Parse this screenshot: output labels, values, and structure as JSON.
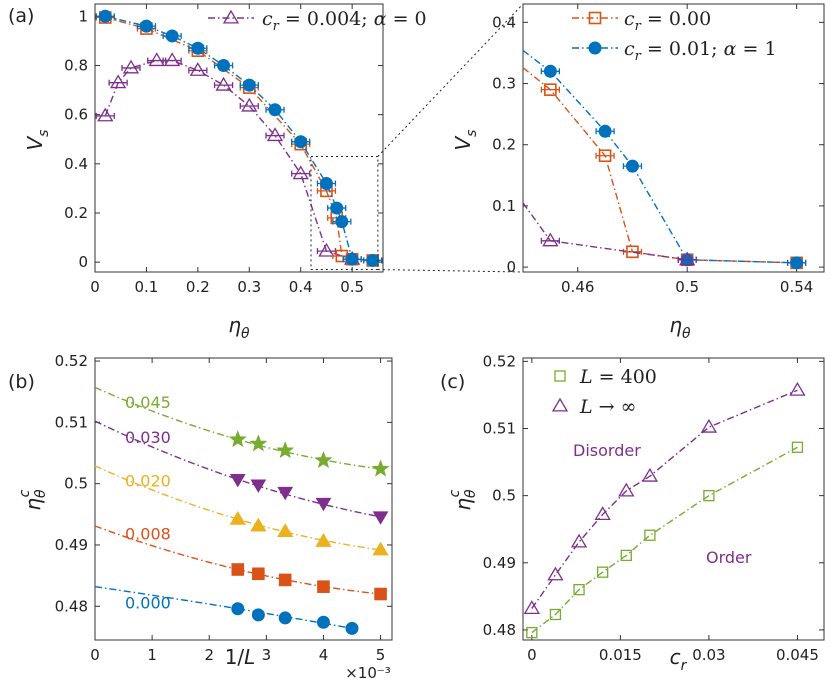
{
  "chart_data": [
    {
      "panel": "(a)",
      "type": "line",
      "xlabel": "ηθ",
      "ylabel": "Vs",
      "xlim": [
        0,
        0.56
      ],
      "ylim": [
        -0.04,
        1.05
      ],
      "xticks": [
        0,
        0.1,
        0.2,
        0.3,
        0.4,
        0.5
      ],
      "xtick_labels": [
        "0",
        "0.1",
        "0.2",
        "0.3",
        "0.4",
        "0.5"
      ],
      "yticks": [
        0,
        0.2,
        0.4,
        0.6,
        0.8,
        1
      ],
      "ytick_labels": [
        "0",
        "0.2",
        "0.4",
        "0.6",
        "0.8",
        "1"
      ],
      "legend": "top-right",
      "series": [
        {
          "name": "cr = 0.004; α = 0",
          "label_html": "c_r = 0.004; α = 0",
          "color": "#7E2F8E",
          "marker": "triangle",
          "x": [
            0.02,
            0.045,
            0.07,
            0.12,
            0.15,
            0.2,
            0.25,
            0.3,
            0.35,
            0.4,
            0.45,
            0.5
          ],
          "y": [
            0.595,
            0.73,
            0.79,
            0.82,
            0.82,
            0.78,
            0.72,
            0.635,
            0.515,
            0.36,
            0.045,
            0.012
          ]
        },
        {
          "name": "cr = 0.00",
          "color": "#D95319",
          "marker": "square",
          "x": [
            0.02,
            0.1,
            0.2,
            0.3,
            0.4,
            0.45,
            0.47,
            0.48,
            0.5,
            0.54
          ],
          "y": [
            0.995,
            0.95,
            0.86,
            0.71,
            0.48,
            0.29,
            0.18,
            0.025,
            0.012,
            0.007
          ]
        },
        {
          "name": "cr = 0.01; α = 1",
          "color": "#0072BD",
          "marker": "circle",
          "x": [
            0.02,
            0.1,
            0.15,
            0.2,
            0.25,
            0.3,
            0.35,
            0.4,
            0.45,
            0.47,
            0.48,
            0.5,
            0.54
          ],
          "y": [
            1.0,
            0.96,
            0.92,
            0.87,
            0.8,
            0.72,
            0.62,
            0.49,
            0.32,
            0.22,
            0.165,
            0.012,
            0.007
          ]
        }
      ]
    },
    {
      "panel": "(a) inset",
      "type": "line",
      "xlabel": "ηθ",
      "ylabel": "Vs",
      "xlim": [
        0.44,
        0.55
      ],
      "ylim": [
        -0.008,
        0.43
      ],
      "xticks": [
        0.46,
        0.5,
        0.54
      ],
      "xtick_labels": [
        "0.46",
        "0.5",
        "0.54"
      ],
      "yticks": [
        0,
        0.1,
        0.2,
        0.3,
        0.4
      ],
      "ytick_labels": [
        "0",
        "0.1",
        "0.2",
        "0.3",
        "0.4"
      ],
      "legend": "top-right",
      "series": [
        {
          "name": "cr = 0.00",
          "color": "#D95319",
          "marker": "square",
          "x": [
            0.45,
            0.47,
            0.48,
            0.5,
            0.54
          ],
          "y": [
            0.29,
            0.182,
            0.025,
            0.012,
            0.007
          ]
        },
        {
          "name": "cr = 0.01; α = 1",
          "color": "#0072BD",
          "marker": "circle",
          "x": [
            0.45,
            0.47,
            0.48,
            0.5,
            0.54
          ],
          "y": [
            0.32,
            0.222,
            0.165,
            0.012,
            0.007
          ]
        },
        {
          "name": "cr = 0.004; α = 0",
          "color": "#7E2F8E",
          "marker": "triangle",
          "x": [
            0.45,
            0.5
          ],
          "y": [
            0.043,
            0.012
          ]
        }
      ]
    },
    {
      "panel": "(b)",
      "type": "line",
      "xlabel": "1/L",
      "xscale_label": "×10⁻³",
      "ylabel": "ηθᶜ",
      "xlim": [
        0,
        0.0052
      ],
      "ylim": [
        0.4745,
        0.5205
      ],
      "xticks": [
        0,
        0.001,
        0.002,
        0.003,
        0.004,
        0.005
      ],
      "xtick_labels": [
        "0",
        "1",
        "2",
        "3",
        "4",
        "5"
      ],
      "yticks": [
        0.48,
        0.49,
        0.5,
        0.51,
        0.52
      ],
      "ytick_labels": [
        "0.48",
        "0.49",
        "0.5",
        "0.51",
        "0.52"
      ],
      "series": [
        {
          "name": "0.045",
          "color": "#77AC30",
          "marker": "star",
          "x": [
            0.0025,
            0.00286,
            0.00333,
            0.004,
            0.005
          ],
          "y": [
            0.5072,
            0.5065,
            0.5054,
            0.5038,
            0.5024
          ],
          "fit_intercept": 0.5157
        },
        {
          "name": "0.030",
          "color": "#7E2F8E",
          "marker": "triangle-down",
          "x": [
            0.0025,
            0.00286,
            0.00333,
            0.004,
            0.005
          ],
          "y": [
            0.5007,
            0.4998,
            0.4986,
            0.4968,
            0.4946
          ],
          "fit_intercept": 0.5102
        },
        {
          "name": "0.020",
          "color": "#EDB120",
          "marker": "triangle",
          "x": [
            0.0025,
            0.00286,
            0.00333,
            0.004,
            0.005
          ],
          "y": [
            0.4942,
            0.4931,
            0.4922,
            0.4906,
            0.4892
          ],
          "fit_intercept": 0.5029
        },
        {
          "name": "0.008",
          "color": "#D95319",
          "marker": "square",
          "x": [
            0.0025,
            0.00286,
            0.00333,
            0.004,
            0.005
          ],
          "y": [
            0.486,
            0.4853,
            0.4843,
            0.4832,
            0.482
          ],
          "fit_intercept": 0.4931
        },
        {
          "name": "0.000",
          "color": "#0072BD",
          "marker": "circle",
          "x": [
            0.0025,
            0.00286,
            0.00333,
            0.004,
            0.0045
          ],
          "y": [
            0.4796,
            0.4786,
            0.4781,
            0.4774,
            0.4764
          ],
          "fit_intercept": 0.4832
        }
      ]
    },
    {
      "panel": "(c)",
      "type": "line",
      "xlabel": "cr",
      "ylabel": "ηθᶜ",
      "xlim": [
        -0.0015,
        0.0495
      ],
      "ylim": [
        0.4785,
        0.5205
      ],
      "xticks": [
        0,
        0.015,
        0.03,
        0.045
      ],
      "xtick_labels": [
        "0",
        "0.015",
        "0.03",
        "0.045"
      ],
      "yticks": [
        0.48,
        0.49,
        0.5,
        0.51,
        0.52
      ],
      "ytick_labels": [
        "0.48",
        "0.49",
        "0.5",
        "0.51",
        "0.52"
      ],
      "legend": "top-left",
      "annotations": [
        "Disorder",
        "Order"
      ],
      "series": [
        {
          "name": "L = 400",
          "color": "#77AC30",
          "marker": "square-open",
          "x": [
            0,
            0.004,
            0.008,
            0.012,
            0.016,
            0.02,
            0.03,
            0.045
          ],
          "y": [
            0.4796,
            0.4823,
            0.486,
            0.4886,
            0.4911,
            0.4941,
            0.5,
            0.5072
          ]
        },
        {
          "name": "L → ∞",
          "color": "#7E2F8E",
          "marker": "triangle-open",
          "x": [
            0,
            0.004,
            0.008,
            0.012,
            0.016,
            0.02,
            0.03,
            0.045
          ],
          "y": [
            0.4832,
            0.4882,
            0.4931,
            0.4972,
            0.5007,
            0.5029,
            0.5102,
            0.5157
          ]
        }
      ]
    }
  ]
}
